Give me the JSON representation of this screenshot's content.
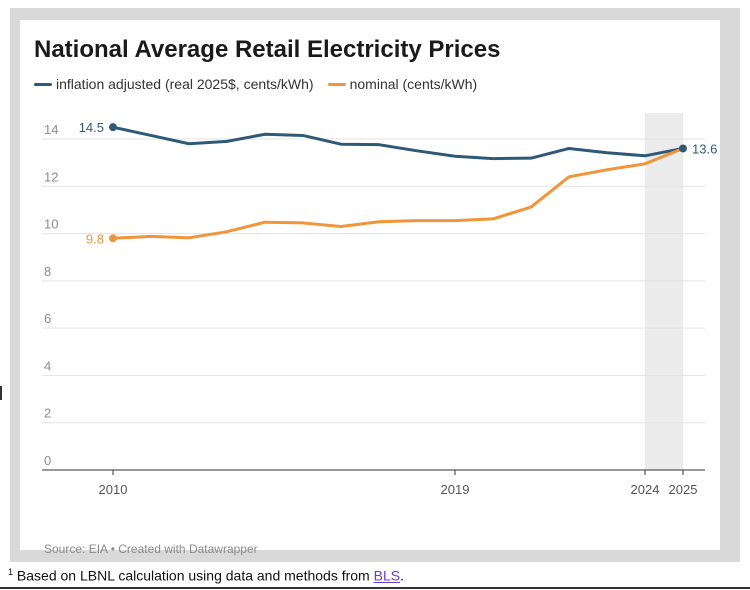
{
  "chart_data": {
    "type": "line",
    "title": "National Average Retail Electricity Prices",
    "x": [
      2010,
      2011,
      2012,
      2013,
      2014,
      2015,
      2016,
      2017,
      2018,
      2019,
      2020,
      2021,
      2022,
      2023,
      2024,
      2025
    ],
    "series": [
      {
        "name": "inflation adjusted (real 2025$, cents/kWh)",
        "color": "#2e5a78",
        "values": [
          14.5,
          14.15,
          13.8,
          13.9,
          14.2,
          14.15,
          13.78,
          13.76,
          13.5,
          13.27,
          13.17,
          13.19,
          13.6,
          13.42,
          13.29,
          13.6
        ]
      },
      {
        "name": "nominal (cents/kWh)",
        "color": "#f0953a",
        "values": [
          9.8,
          9.88,
          9.82,
          10.08,
          10.48,
          10.45,
          10.3,
          10.5,
          10.55,
          10.55,
          10.62,
          11.12,
          12.4,
          12.7,
          12.95,
          13.6
        ]
      }
    ],
    "ylim": [
      0,
      14
    ],
    "y_ticks": [
      0,
      2,
      4,
      6,
      8,
      10,
      12,
      14
    ],
    "x_tick_labels": [
      "2010",
      "2019",
      "2024",
      "2025"
    ],
    "highlight_range": [
      2024,
      2025
    ],
    "annotations": [
      {
        "series": 0,
        "index": 0,
        "label": "14.5"
      },
      {
        "series": 1,
        "index": 0,
        "label": "9.8"
      },
      {
        "series": 0,
        "index": 15,
        "label": "13.6"
      }
    ],
    "grid": true,
    "legend_position": "top-left"
  },
  "source_text": "Source: EIA • Created with Datawrapper",
  "footnote": {
    "marker": "1",
    "text": "Based on LBNL calculation using data and methods from ",
    "link_text": "BLS",
    "end": "."
  }
}
